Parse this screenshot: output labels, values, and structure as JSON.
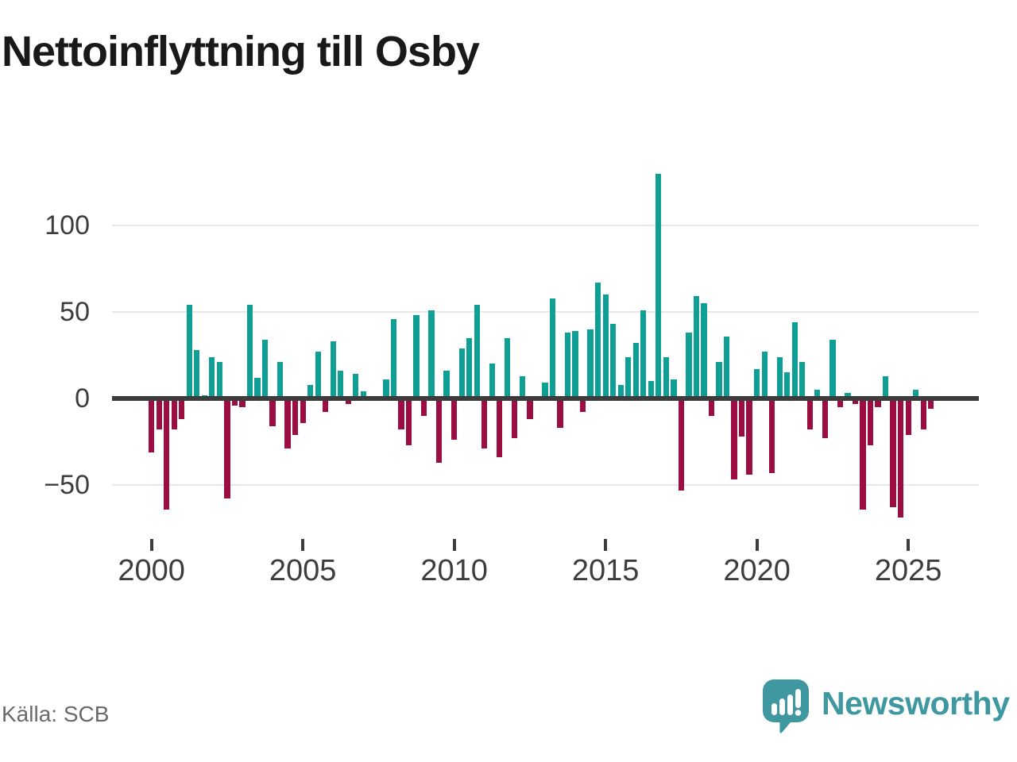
{
  "chart_data": {
    "type": "bar",
    "title": "Nettoinflyttning till Osby",
    "frequency": "quarterly",
    "x_start": "2000-Q1",
    "x_end": "2025-Q4",
    "values": [
      -31,
      -18,
      -64,
      -18,
      -12,
      54,
      28,
      2,
      24,
      21,
      -58,
      -4,
      -5,
      54,
      12,
      34,
      -16,
      21,
      -29,
      -21,
      -14,
      8,
      27,
      -8,
      33,
      16,
      -3,
      14,
      4,
      0,
      0,
      11,
      46,
      -18,
      -27,
      48,
      -10,
      51,
      -37,
      16,
      -24,
      29,
      35,
      54,
      -29,
      20,
      -34,
      35,
      -23,
      13,
      -12,
      0,
      9,
      58,
      -17,
      38,
      39,
      -8,
      40,
      67,
      60,
      43,
      8,
      24,
      32,
      51,
      10,
      130,
      24,
      11,
      -53,
      38,
      59,
      55,
      -10,
      21,
      36,
      -47,
      -22,
      -44,
      17,
      27,
      -43,
      24,
      15,
      44,
      21,
      -18,
      5,
      -23,
      34,
      -5,
      3,
      -3,
      -64,
      -27,
      -5,
      13,
      -63,
      -69,
      -21,
      5,
      -18,
      -6
    ],
    "x_tick_labels": [
      "2000",
      "2005",
      "2010",
      "2015",
      "2020",
      "2025"
    ],
    "y_tick_values": [
      100,
      50,
      0,
      -50
    ],
    "y_tick_labels": [
      "100",
      "50",
      "0",
      "−50"
    ],
    "ylim": [
      -75,
      135
    ],
    "grid": "horizontal",
    "legend": "none",
    "positive_color": "#0f9f94",
    "negative_color": "#9c0d44"
  },
  "footer": {
    "source": "Källa: SCB",
    "brand": "Newsworthy"
  },
  "icons": {
    "brand_logo": "newsworthy-speech-bubble-bar-chart-icon"
  }
}
